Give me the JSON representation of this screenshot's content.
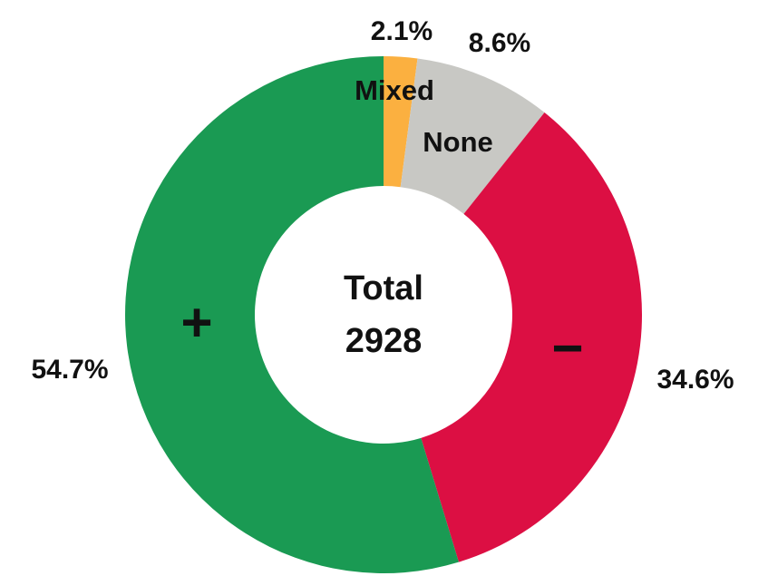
{
  "chart_data": {
    "type": "pie",
    "variant": "donut",
    "total_label": "Total",
    "total_value": "2928",
    "slices": [
      {
        "label": "Mixed",
        "value": 2.1,
        "value_label": "2.1%",
        "color": "#fbb040"
      },
      {
        "label": "None",
        "value": 8.6,
        "value_label": "8.6%",
        "color": "#c8c8c4"
      },
      {
        "label": "−",
        "value": 34.6,
        "value_label": "34.6%",
        "color": "#dc0f43"
      },
      {
        "label": "+",
        "value": 54.7,
        "value_label": "54.7%",
        "color": "#1a9a53"
      }
    ],
    "start": "top",
    "direction": "clockwise",
    "legend": "none"
  }
}
